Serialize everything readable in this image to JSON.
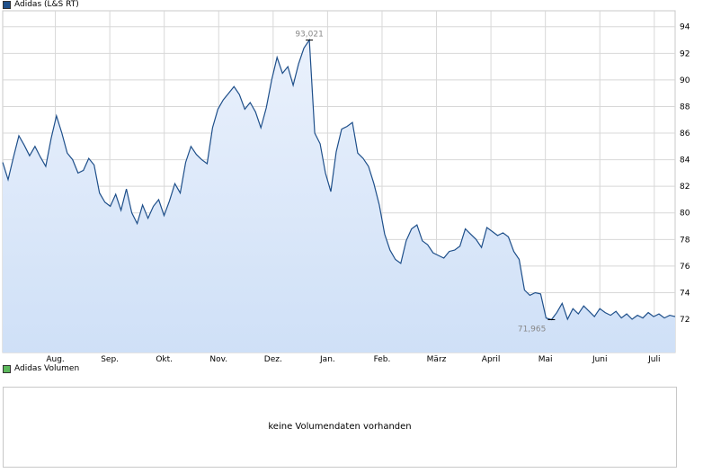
{
  "chart_data": {
    "type": "area",
    "title": "",
    "xlabel": "",
    "ylabel": "",
    "ylim": [
      69.5,
      95.2
    ],
    "yticks": [
      72,
      74,
      76,
      78,
      80,
      82,
      84,
      86,
      88,
      90,
      92,
      94
    ],
    "y_axis_position": "right",
    "grid": true,
    "legend": "top-left",
    "x_months": [
      "Aug.",
      "Sep.",
      "Okt.",
      "Nov.",
      "Dez.",
      "Jan.",
      "Feb.",
      "März",
      "April",
      "Mai",
      "Juni",
      "Juli"
    ],
    "series": [
      {
        "name": "Adidas (L&S RT)",
        "color": "#1e4f8a",
        "fill_top": "#eaf1fc",
        "fill_bottom": "#cfe0f7",
        "x": [
          0,
          2,
          4,
          6,
          8,
          10,
          12,
          14,
          16,
          18,
          20,
          22,
          24,
          26,
          28,
          30,
          32,
          34,
          36,
          38,
          40,
          42,
          44,
          46,
          48,
          50,
          52,
          54,
          56,
          58,
          60,
          62,
          64,
          66,
          68,
          70,
          72,
          74,
          76,
          78,
          80,
          82,
          84,
          86,
          88,
          90,
          92,
          94,
          96,
          98,
          100,
          102,
          104,
          106,
          108,
          110,
          112,
          114,
          116,
          118,
          120,
          122,
          124,
          126,
          128,
          130,
          132,
          134,
          136,
          138,
          140,
          142,
          144,
          146,
          148,
          150,
          152,
          154,
          156,
          158,
          160,
          162,
          164,
          166,
          168,
          170,
          172,
          174,
          176,
          178,
          180,
          182,
          184,
          186,
          188,
          190,
          192,
          194,
          196,
          198,
          200,
          202,
          204,
          206,
          208,
          210,
          212,
          214,
          216,
          218,
          220,
          222,
          224,
          226,
          228,
          230,
          232,
          234,
          236,
          238,
          240,
          242,
          244,
          246,
          248,
          250
        ],
        "values": [
          83.8,
          82.5,
          84.2,
          85.8,
          85.1,
          84.3,
          85.0,
          84.2,
          83.5,
          85.6,
          87.3,
          86.0,
          84.5,
          84.0,
          83.0,
          83.2,
          84.1,
          83.6,
          81.5,
          80.8,
          80.5,
          81.4,
          80.2,
          81.8,
          80.0,
          79.2,
          80.6,
          79.6,
          80.5,
          81.0,
          79.8,
          80.9,
          82.2,
          81.5,
          83.8,
          85.0,
          84.4,
          84.0,
          83.7,
          86.4,
          87.8,
          88.5,
          89.0,
          89.5,
          88.9,
          87.8,
          88.3,
          87.6,
          86.4,
          87.9,
          90.0,
          91.7,
          90.5,
          91.0,
          89.6,
          91.2,
          92.4,
          93.0,
          86.0,
          85.2,
          83.0,
          81.6,
          84.6,
          86.3,
          86.5,
          86.8,
          84.5,
          84.1,
          83.5,
          82.2,
          80.6,
          78.4,
          77.2,
          76.5,
          76.2,
          77.9,
          78.8,
          79.1,
          77.9,
          77.6,
          77.0,
          76.8,
          76.6,
          77.1,
          77.2,
          77.5,
          78.8,
          78.4,
          78.0,
          77.4,
          78.9,
          78.6,
          78.3,
          78.5,
          78.2,
          77.1,
          76.5,
          74.2,
          73.8,
          74.0,
          73.9,
          72.1,
          71.97,
          72.5,
          73.2,
          72.0,
          72.8,
          72.4,
          73.0,
          72.6,
          72.2,
          72.8,
          72.5,
          72.3,
          72.6,
          72.1,
          72.4,
          72.0,
          72.3,
          72.1,
          72.5,
          72.2,
          72.4,
          72.1,
          72.3,
          72.2
        ]
      }
    ],
    "annotations": [
      {
        "label": "93,021",
        "value": 93.021,
        "type": "max"
      },
      {
        "label": "71,965",
        "value": 71.965,
        "type": "min"
      }
    ]
  },
  "legend": {
    "price_label": "Adidas (L&S RT)",
    "price_color": "#1e4f8a",
    "volume_label": "Adidas Volumen",
    "volume_color": "#5cb85c"
  },
  "volume": {
    "message": "keine Volumendaten vorhanden"
  }
}
